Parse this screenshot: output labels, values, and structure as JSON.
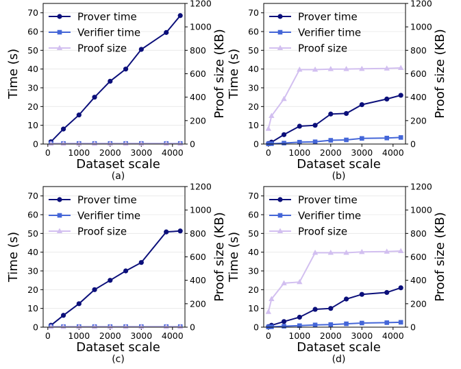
{
  "chart_data": [
    {
      "type": "line",
      "caption": "(a)",
      "xlabel": "Dataset scale",
      "ylabel": "Time (s)",
      "y2label": "Proof size (KB)",
      "xlim": [
        -150,
        4400
      ],
      "ylim": [
        0,
        75
      ],
      "y2lim": [
        0,
        1200
      ],
      "xticks": [
        0,
        1000,
        2000,
        3000,
        4000
      ],
      "yticks": [
        0,
        10,
        20,
        30,
        40,
        50,
        60,
        70
      ],
      "y2ticks": [
        0,
        200,
        400,
        600,
        800,
        1000,
        1200
      ],
      "legend": "top-left",
      "series": [
        {
          "name": "Prover time",
          "axis": "left",
          "color": "#0b0f7a",
          "marker": "circle",
          "x": [
            100,
            500,
            1000,
            1500,
            2000,
            2500,
            3000,
            3800,
            4250
          ],
          "y": [
            1.2,
            8,
            15.5,
            25,
            33.5,
            40,
            50.5,
            59.5,
            68.5
          ]
        },
        {
          "name": "Verifier time",
          "axis": "left",
          "color": "#4466d8",
          "marker": "square",
          "x": [
            100,
            500,
            1000,
            1500,
            2000,
            2500,
            3000,
            3800,
            4250
          ],
          "y": [
            0.3,
            0.3,
            0.3,
            0.3,
            0.3,
            0.3,
            0.3,
            0.3,
            0.3
          ]
        },
        {
          "name": "Proof size",
          "axis": "right",
          "color": "#d2bff0",
          "marker": "triangle",
          "x": [
            100,
            500,
            1000,
            1500,
            2000,
            2500,
            3000,
            3800,
            4250
          ],
          "y": [
            3,
            3,
            3,
            3,
            3,
            3,
            3,
            3,
            3
          ]
        }
      ]
    },
    {
      "type": "line",
      "caption": "(b)",
      "xlabel": "Dataset scale",
      "ylabel": "Time (s)",
      "y2label": "Proof size (KB)",
      "xlim": [
        -150,
        4400
      ],
      "ylim": [
        0,
        75
      ],
      "y2lim": [
        0,
        1200
      ],
      "xticks": [
        0,
        1000,
        2000,
        3000,
        4000
      ],
      "yticks": [
        0,
        10,
        20,
        30,
        40,
        50,
        60,
        70
      ],
      "y2ticks": [
        0,
        200,
        400,
        600,
        800,
        1000,
        1200
      ],
      "legend": "top-left",
      "series": [
        {
          "name": "Prover time",
          "axis": "left",
          "color": "#0b0f7a",
          "marker": "circle",
          "x": [
            0,
            100,
            500,
            1000,
            1500,
            2000,
            2500,
            3000,
            3800,
            4250
          ],
          "y": [
            0.3,
            1,
            5,
            9.5,
            10,
            16,
            16.3,
            21,
            24,
            26
          ]
        },
        {
          "name": "Verifier time",
          "axis": "left",
          "color": "#4466d8",
          "marker": "square",
          "x": [
            0,
            100,
            500,
            1000,
            1500,
            2000,
            2500,
            3000,
            3800,
            4250
          ],
          "y": [
            0.1,
            0.2,
            0.5,
            1,
            1.2,
            2,
            2.2,
            3,
            3.2,
            3.5
          ]
        },
        {
          "name": "Proof size",
          "axis": "right",
          "color": "#d2bff0",
          "marker": "triangle",
          "x": [
            0,
            100,
            500,
            1000,
            1500,
            2000,
            2500,
            3000,
            3800,
            4250
          ],
          "y": [
            130,
            240,
            385,
            635,
            635,
            640,
            640,
            642,
            645,
            650
          ]
        }
      ]
    },
    {
      "type": "line",
      "caption": "(c)",
      "xlabel": "Dataset scale",
      "ylabel": "Time (s)",
      "y2label": "Proof size (KB)",
      "xlim": [
        -150,
        4400
      ],
      "ylim": [
        0,
        75
      ],
      "y2lim": [
        0,
        1200
      ],
      "xticks": [
        0,
        1000,
        2000,
        3000,
        4000
      ],
      "yticks": [
        0,
        10,
        20,
        30,
        40,
        50,
        60,
        70
      ],
      "y2ticks": [
        0,
        200,
        400,
        600,
        800,
        1000,
        1200
      ],
      "legend": "top-left",
      "series": [
        {
          "name": "Prover time",
          "axis": "left",
          "color": "#0b0f7a",
          "marker": "circle",
          "x": [
            100,
            500,
            1000,
            1500,
            2000,
            2500,
            3000,
            3800,
            4250
          ],
          "y": [
            1,
            6.3,
            12.5,
            20,
            25,
            30,
            34.5,
            50.8,
            51.3
          ]
        },
        {
          "name": "Verifier time",
          "axis": "left",
          "color": "#4466d8",
          "marker": "square",
          "x": [
            100,
            500,
            1000,
            1500,
            2000,
            2500,
            3000,
            3800,
            4250
          ],
          "y": [
            0.3,
            0.3,
            0.3,
            0.3,
            0.3,
            0.3,
            0.3,
            0.3,
            0.3
          ]
        },
        {
          "name": "Proof size",
          "axis": "right",
          "color": "#d2bff0",
          "marker": "triangle",
          "x": [
            100,
            500,
            1000,
            1500,
            2000,
            2500,
            3000,
            3800,
            4250
          ],
          "y": [
            3,
            3,
            3,
            3,
            3,
            3,
            3,
            3,
            3
          ]
        }
      ]
    },
    {
      "type": "line",
      "caption": "(d)",
      "xlabel": "Dataset scale",
      "ylabel": "Time (s)",
      "y2label": "Proof size (KB)",
      "xlim": [
        -150,
        4400
      ],
      "ylim": [
        0,
        75
      ],
      "y2lim": [
        0,
        1200
      ],
      "xticks": [
        0,
        1000,
        2000,
        3000,
        4000
      ],
      "yticks": [
        0,
        10,
        20,
        30,
        40,
        50,
        60,
        70
      ],
      "y2ticks": [
        0,
        200,
        400,
        600,
        800,
        1000,
        1200
      ],
      "legend": "top-left",
      "series": [
        {
          "name": "Prover time",
          "axis": "left",
          "color": "#0b0f7a",
          "marker": "circle",
          "x": [
            0,
            100,
            500,
            1000,
            1500,
            2000,
            2500,
            3000,
            3800,
            4250
          ],
          "y": [
            0.3,
            1,
            3,
            5.3,
            9.5,
            10,
            15,
            17.5,
            18.5,
            21
          ]
        },
        {
          "name": "Verifier time",
          "axis": "left",
          "color": "#4466d8",
          "marker": "square",
          "x": [
            0,
            100,
            500,
            1000,
            1500,
            2000,
            2500,
            3000,
            3800,
            4250
          ],
          "y": [
            0.1,
            0.2,
            0.5,
            0.8,
            1.2,
            1.4,
            1.8,
            2.2,
            2.4,
            2.6
          ]
        },
        {
          "name": "Proof size",
          "axis": "right",
          "color": "#d2bff0",
          "marker": "triangle",
          "x": [
            0,
            100,
            500,
            1000,
            1500,
            2000,
            2500,
            3000,
            3800,
            4250
          ],
          "y": [
            130,
            240,
            375,
            385,
            635,
            635,
            635,
            642,
            645,
            650
          ]
        }
      ]
    }
  ]
}
